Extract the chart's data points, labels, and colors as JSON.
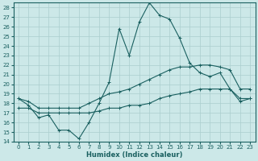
{
  "xlabel": "Humidex (Indice chaleur)",
  "xlim": [
    -0.5,
    23.5
  ],
  "ylim": [
    14,
    28.5
  ],
  "yticks": [
    14,
    15,
    16,
    17,
    18,
    19,
    20,
    21,
    22,
    23,
    24,
    25,
    26,
    27,
    28
  ],
  "xticks": [
    0,
    1,
    2,
    3,
    4,
    5,
    6,
    7,
    8,
    9,
    10,
    11,
    12,
    13,
    14,
    15,
    16,
    17,
    18,
    19,
    20,
    21,
    22,
    23
  ],
  "bg_color": "#cce8e8",
  "grid_color": "#aacece",
  "line_color": "#1a6060",
  "line1": [
    18.5,
    17.8,
    16.5,
    16.8,
    15.2,
    15.2,
    14.3,
    16.0,
    18.0,
    20.2,
    25.8,
    23.0,
    26.5,
    28.5,
    27.2,
    26.8,
    24.8,
    22.2,
    21.2,
    20.8,
    21.2,
    19.5,
    18.2,
    18.5
  ],
  "line2": [
    18.5,
    18.2,
    17.5,
    17.5,
    17.5,
    17.5,
    17.5,
    18.0,
    18.5,
    19.0,
    19.2,
    19.5,
    20.0,
    20.5,
    21.0,
    21.5,
    21.8,
    21.8,
    22.0,
    22.0,
    21.8,
    21.5,
    19.5,
    19.5
  ],
  "line3": [
    17.5,
    17.5,
    17.0,
    17.0,
    17.0,
    17.0,
    17.0,
    17.0,
    17.2,
    17.5,
    17.5,
    17.8,
    17.8,
    18.0,
    18.5,
    18.8,
    19.0,
    19.2,
    19.5,
    19.5,
    19.5,
    19.5,
    18.5,
    18.5
  ]
}
